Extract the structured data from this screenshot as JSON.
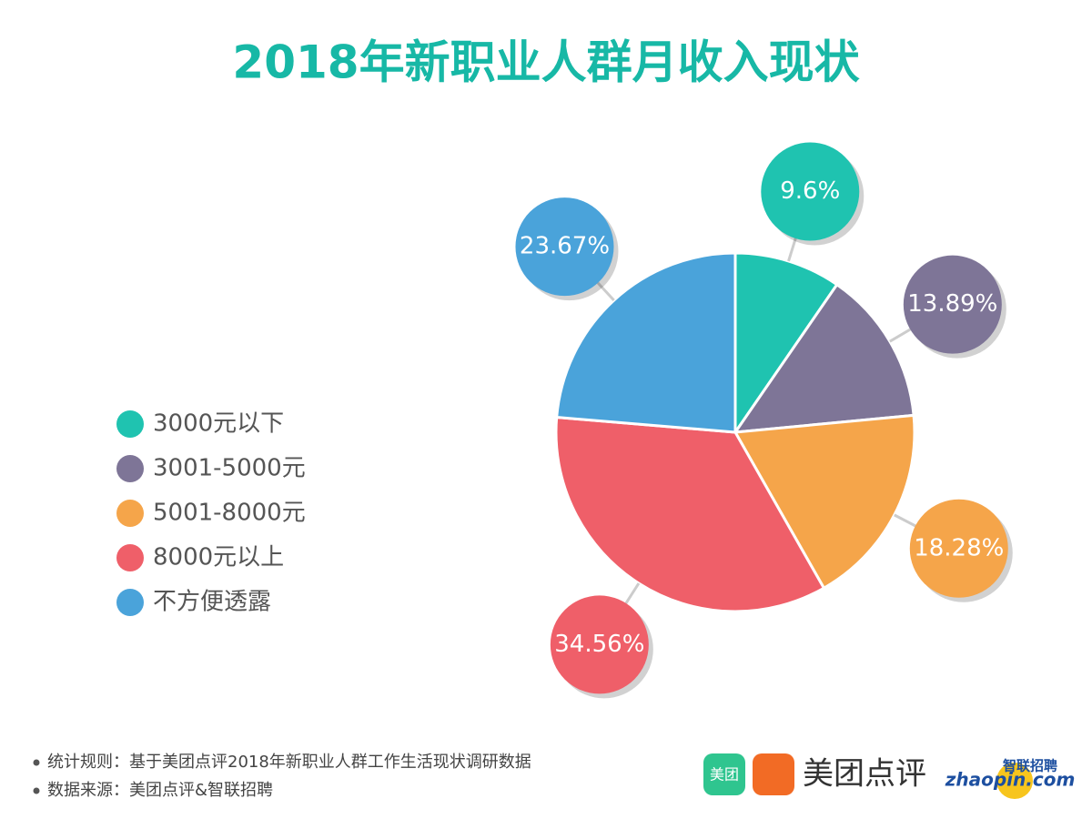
{
  "chart_data": {
    "type": "pie",
    "title": "2018年新职业人群月收入现状",
    "categories": [
      "3000元以下",
      "3001-5000元",
      "5001-8000元",
      "8000元以上",
      "不方便透露"
    ],
    "values": [
      9.6,
      13.89,
      18.28,
      34.56,
      23.67
    ],
    "value_labels": [
      "9.6%",
      "13.89%",
      "18.28%",
      "34.56%",
      "23.67%"
    ],
    "colors": [
      "#1fc3b0",
      "#7e7597",
      "#f5a54a",
      "#ef5f69",
      "#4aa3da"
    ],
    "legend": "left",
    "notes": [
      "统计规则：基于美团点评2018年新职业人群工作生活现状调研数据",
      "数据来源：美团点评&智联招聘"
    ],
    "logos": [
      "美团",
      "美团点评",
      "智联招聘",
      "zhaopin.com"
    ]
  }
}
